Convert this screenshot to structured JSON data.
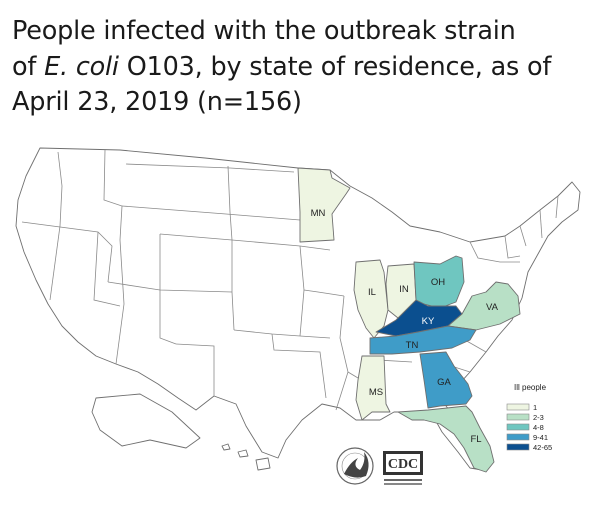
{
  "title": {
    "line1": "People infected with the outbreak strain",
    "of_prefix": "of ",
    "organism": "E. coli",
    "line2_rest": " O103, by state of residence, as of",
    "line3": "April 23, 2019 (n=156)"
  },
  "colors": {
    "no_cases": "#ffffff",
    "c1": "#eef5e2",
    "c2_3": "#b8e0c6",
    "c4_8": "#6fc6c0",
    "c9_41": "#3f9cc8",
    "c42_65": "#0b4f8f",
    "border": "#6f6f6f"
  },
  "states": [
    {
      "abbr": "MN",
      "bin": "1"
    },
    {
      "abbr": "IL",
      "bin": "1"
    },
    {
      "abbr": "IN",
      "bin": "1"
    },
    {
      "abbr": "MS",
      "bin": "1"
    },
    {
      "abbr": "OH",
      "bin": "4-8"
    },
    {
      "abbr": "VA",
      "bin": "2-3"
    },
    {
      "abbr": "FL",
      "bin": "2-3"
    },
    {
      "abbr": "TN",
      "bin": "9-41"
    },
    {
      "abbr": "GA",
      "bin": "9-41"
    },
    {
      "abbr": "KY",
      "bin": "42-65"
    }
  ],
  "legend": {
    "title": "Ill people",
    "items": [
      "1",
      "2-3",
      "4-8",
      "9-41",
      "42-65"
    ]
  },
  "logos": {
    "hhs": "hhs-eagle-seal",
    "cdc": "CDC"
  }
}
